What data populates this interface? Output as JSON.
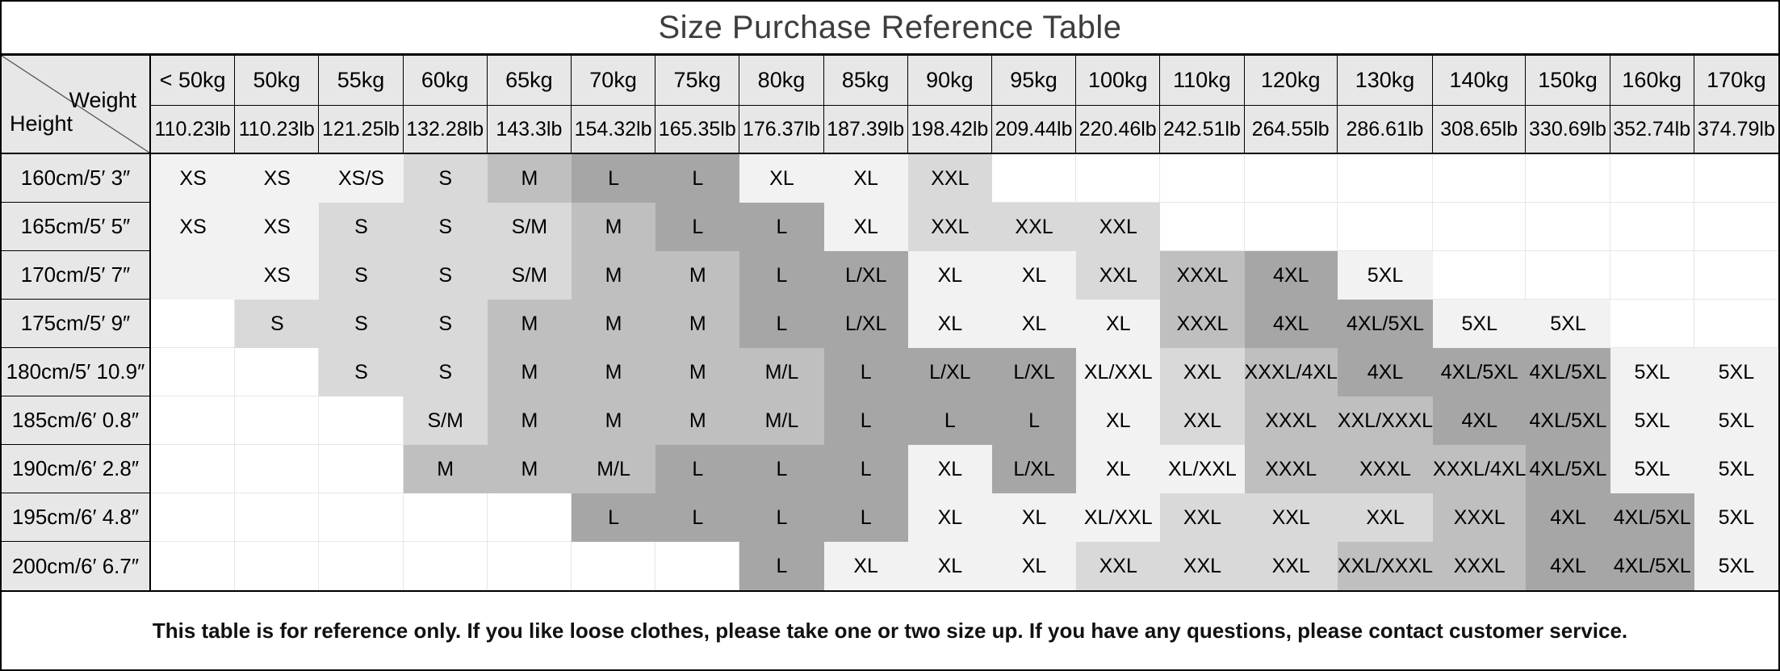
{
  "chart_data": {
    "type": "table",
    "title": "Size Purchase Reference Table",
    "corner": {
      "weight_label": "Weight",
      "height_label": "Height"
    },
    "weight_columns_kg": [
      "< 50kg",
      "50kg",
      "55kg",
      "60kg",
      "65kg",
      "70kg",
      "75kg",
      "80kg",
      "85kg",
      "90kg",
      "95kg",
      "100kg",
      "110kg",
      "120kg",
      "130kg",
      "140kg",
      "150kg",
      "160kg",
      "170kg"
    ],
    "weight_columns_lb": [
      "110.23lb",
      "110.23lb",
      "121.25lb",
      "132.28lb",
      "143.3lb",
      "154.32lb",
      "165.35lb",
      "176.37lb",
      "187.39lb",
      "198.42lb",
      "209.44lb",
      "220.46lb",
      "242.51lb",
      "264.55lb",
      "286.61lb",
      "308.65lb",
      "330.69lb",
      "352.74lb",
      "374.79lb"
    ],
    "shade_palette": [
      "#ffffff",
      "#f2f2f2",
      "#d9d9d9",
      "#bfbfbf",
      "#a6a6a6"
    ],
    "shade_note": "each cell is [size_value, shade_index]; 0=white empty, 1-4 = light to dark gray",
    "rows": [
      {
        "height": "160cm/5′ 3″",
        "cells": [
          [
            "XS",
            1
          ],
          [
            "XS",
            1
          ],
          [
            "XS/S",
            1
          ],
          [
            "S",
            2
          ],
          [
            "M",
            3
          ],
          [
            "L",
            4
          ],
          [
            "L",
            4
          ],
          [
            "XL",
            1
          ],
          [
            "XL",
            1
          ],
          [
            "XXL",
            2
          ],
          [
            "",
            0
          ],
          [
            "",
            0
          ],
          [
            "",
            0
          ],
          [
            "",
            0
          ],
          [
            "",
            0
          ],
          [
            "",
            0
          ],
          [
            "",
            0
          ],
          [
            "",
            0
          ],
          [
            "",
            0
          ]
        ]
      },
      {
        "height": "165cm/5′ 5″",
        "cells": [
          [
            "XS",
            1
          ],
          [
            "XS",
            1
          ],
          [
            "S",
            2
          ],
          [
            "S",
            2
          ],
          [
            "S/M",
            2
          ],
          [
            "M",
            3
          ],
          [
            "L",
            4
          ],
          [
            "L",
            4
          ],
          [
            "XL",
            1
          ],
          [
            "XXL",
            2
          ],
          [
            "XXL",
            2
          ],
          [
            "XXL",
            2
          ],
          [
            "",
            0
          ],
          [
            "",
            0
          ],
          [
            "",
            0
          ],
          [
            "",
            0
          ],
          [
            "",
            0
          ],
          [
            "",
            0
          ],
          [
            "",
            0
          ]
        ]
      },
      {
        "height": "170cm/5′ 7″",
        "cells": [
          [
            "",
            1
          ],
          [
            "XS",
            1
          ],
          [
            "S",
            2
          ],
          [
            "S",
            2
          ],
          [
            "S/M",
            2
          ],
          [
            "M",
            3
          ],
          [
            "M",
            3
          ],
          [
            "L",
            4
          ],
          [
            "L/XL",
            4
          ],
          [
            "XL",
            1
          ],
          [
            "XL",
            1
          ],
          [
            "XXL",
            2
          ],
          [
            "XXXL",
            3
          ],
          [
            "4XL",
            4
          ],
          [
            "5XL",
            1
          ],
          [
            "",
            0
          ],
          [
            "",
            0
          ],
          [
            "",
            0
          ],
          [
            "",
            0
          ]
        ]
      },
      {
        "height": "175cm/5′ 9″",
        "cells": [
          [
            "",
            0
          ],
          [
            "S",
            2
          ],
          [
            "S",
            2
          ],
          [
            "S",
            2
          ],
          [
            "M",
            3
          ],
          [
            "M",
            3
          ],
          [
            "M",
            3
          ],
          [
            "L",
            4
          ],
          [
            "L/XL",
            4
          ],
          [
            "XL",
            1
          ],
          [
            "XL",
            1
          ],
          [
            "XL",
            1
          ],
          [
            "XXXL",
            3
          ],
          [
            "4XL",
            4
          ],
          [
            "4XL/5XL",
            4
          ],
          [
            "5XL",
            1
          ],
          [
            "5XL",
            1
          ],
          [
            "",
            0
          ],
          [
            "",
            0
          ]
        ]
      },
      {
        "height": "180cm/5′ 10.9″",
        "cells": [
          [
            "",
            0
          ],
          [
            "",
            0
          ],
          [
            "S",
            2
          ],
          [
            "S",
            2
          ],
          [
            "M",
            3
          ],
          [
            "M",
            3
          ],
          [
            "M",
            3
          ],
          [
            "M/L",
            3
          ],
          [
            "L",
            4
          ],
          [
            "L/XL",
            4
          ],
          [
            "L/XL",
            4
          ],
          [
            "XL/XXL",
            1
          ],
          [
            "XXL",
            2
          ],
          [
            "XXXL/4XL",
            3
          ],
          [
            "4XL",
            4
          ],
          [
            "4XL/5XL",
            4
          ],
          [
            "4XL/5XL",
            4
          ],
          [
            "5XL",
            1
          ],
          [
            "5XL",
            1
          ]
        ]
      },
      {
        "height": "185cm/6′ 0.8″",
        "cells": [
          [
            "",
            0
          ],
          [
            "",
            0
          ],
          [
            "",
            0
          ],
          [
            "S/M",
            2
          ],
          [
            "M",
            3
          ],
          [
            "M",
            3
          ],
          [
            "M",
            3
          ],
          [
            "M/L",
            3
          ],
          [
            "L",
            4
          ],
          [
            "L",
            4
          ],
          [
            "L",
            4
          ],
          [
            "XL",
            1
          ],
          [
            "XXL",
            2
          ],
          [
            "XXXL",
            3
          ],
          [
            "XXL/XXXL",
            3
          ],
          [
            "4XL",
            4
          ],
          [
            "4XL/5XL",
            4
          ],
          [
            "5XL",
            1
          ],
          [
            "5XL",
            1
          ]
        ]
      },
      {
        "height": "190cm/6′ 2.8″",
        "cells": [
          [
            "",
            0
          ],
          [
            "",
            0
          ],
          [
            "",
            0
          ],
          [
            "M",
            3
          ],
          [
            "M",
            3
          ],
          [
            "M/L",
            3
          ],
          [
            "L",
            4
          ],
          [
            "L",
            4
          ],
          [
            "L",
            4
          ],
          [
            "XL",
            1
          ],
          [
            "L/XL",
            4
          ],
          [
            "XL",
            1
          ],
          [
            "XL/XXL",
            1
          ],
          [
            "XXXL",
            3
          ],
          [
            "XXXL",
            3
          ],
          [
            "XXXL/4XL",
            3
          ],
          [
            "4XL/5XL",
            4
          ],
          [
            "5XL",
            1
          ],
          [
            "5XL",
            1
          ]
        ]
      },
      {
        "height": "195cm/6′ 4.8″",
        "cells": [
          [
            "",
            0
          ],
          [
            "",
            0
          ],
          [
            "",
            0
          ],
          [
            "",
            0
          ],
          [
            "",
            0
          ],
          [
            "L",
            4
          ],
          [
            "L",
            4
          ],
          [
            "L",
            4
          ],
          [
            "L",
            4
          ],
          [
            "XL",
            1
          ],
          [
            "XL",
            1
          ],
          [
            "XL/XXL",
            1
          ],
          [
            "XXL",
            2
          ],
          [
            "XXL",
            2
          ],
          [
            "XXL",
            2
          ],
          [
            "XXXL",
            3
          ],
          [
            "4XL",
            4
          ],
          [
            "4XL/5XL",
            4
          ],
          [
            "5XL",
            1
          ]
        ]
      },
      {
        "height": "200cm/6′ 6.7″",
        "cells": [
          [
            "",
            0
          ],
          [
            "",
            0
          ],
          [
            "",
            0
          ],
          [
            "",
            0
          ],
          [
            "",
            0
          ],
          [
            "",
            0
          ],
          [
            "",
            0
          ],
          [
            "L",
            4
          ],
          [
            "XL",
            1
          ],
          [
            "XL",
            1
          ],
          [
            "XL",
            1
          ],
          [
            "XXL",
            2
          ],
          [
            "XXL",
            2
          ],
          [
            "XXL",
            2
          ],
          [
            "XXL/XXXL",
            3
          ],
          [
            "XXXL",
            3
          ],
          [
            "4XL",
            4
          ],
          [
            "4XL/5XL",
            4
          ],
          [
            "5XL",
            1
          ]
        ]
      }
    ],
    "footer_note": "This table is for reference only. If you like loose clothes, please take one or two size up. If you have any questions, please contact customer service."
  },
  "colors": {
    "header_bg": "#e7e7e7",
    "frame": "#000000",
    "grid_line": "#e6e6e6",
    "title_color": "#3d3d3d",
    "cell_text": "#000000"
  }
}
